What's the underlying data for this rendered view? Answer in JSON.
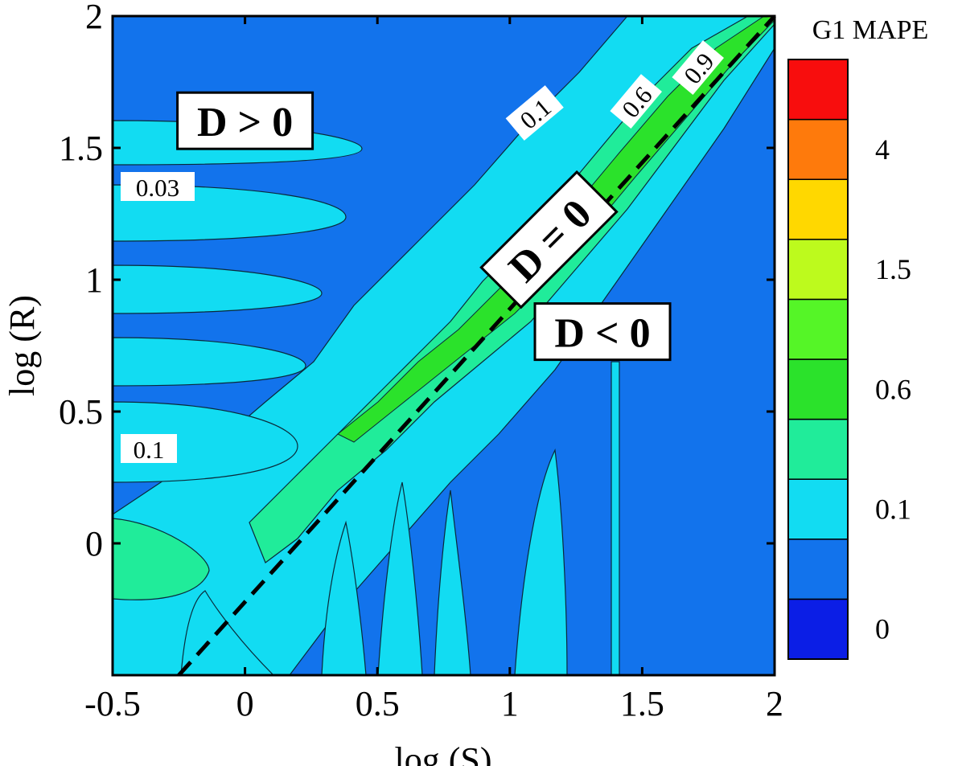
{
  "chart_data": {
    "type": "heatmap",
    "title": "",
    "xlabel": "log (S)",
    "ylabel": "log (R)",
    "xlim": [
      -0.5,
      2
    ],
    "ylim": [
      -0.5,
      2
    ],
    "x_ticks": [
      "-0.5",
      "0",
      "0.5",
      "1",
      "1.5",
      "2"
    ],
    "y_ticks": [
      "0",
      "0.5",
      "1",
      "1.5",
      "2"
    ],
    "colorbar": {
      "title": "G1 MAPE",
      "tick_labels": [
        "0",
        "0.1",
        "0.6",
        "1.5",
        "4"
      ],
      "colors": [
        "#0b1ee6",
        "#1273ec",
        "#12dcf2",
        "#20ec9a",
        "#2be22b",
        "#55f527",
        "#bdfa1d",
        "#ffd800",
        "#fe7a0c",
        "#f80d0d"
      ]
    },
    "regions": [
      {
        "label": "D > 0",
        "x": 0.0,
        "y": 1.6
      },
      {
        "label": "D = 0",
        "x": 1.15,
        "y": 1.15
      },
      {
        "label": "D < 0",
        "x": 1.35,
        "y": 0.8
      }
    ],
    "contour_labels": [
      "0.03",
      "0.1",
      "0.1",
      "0.6",
      "0.9"
    ],
    "reference_line": {
      "style": "dashed",
      "from": [
        -0.25,
        -0.5
      ],
      "to": [
        2,
        2
      ]
    },
    "grid": false
  }
}
